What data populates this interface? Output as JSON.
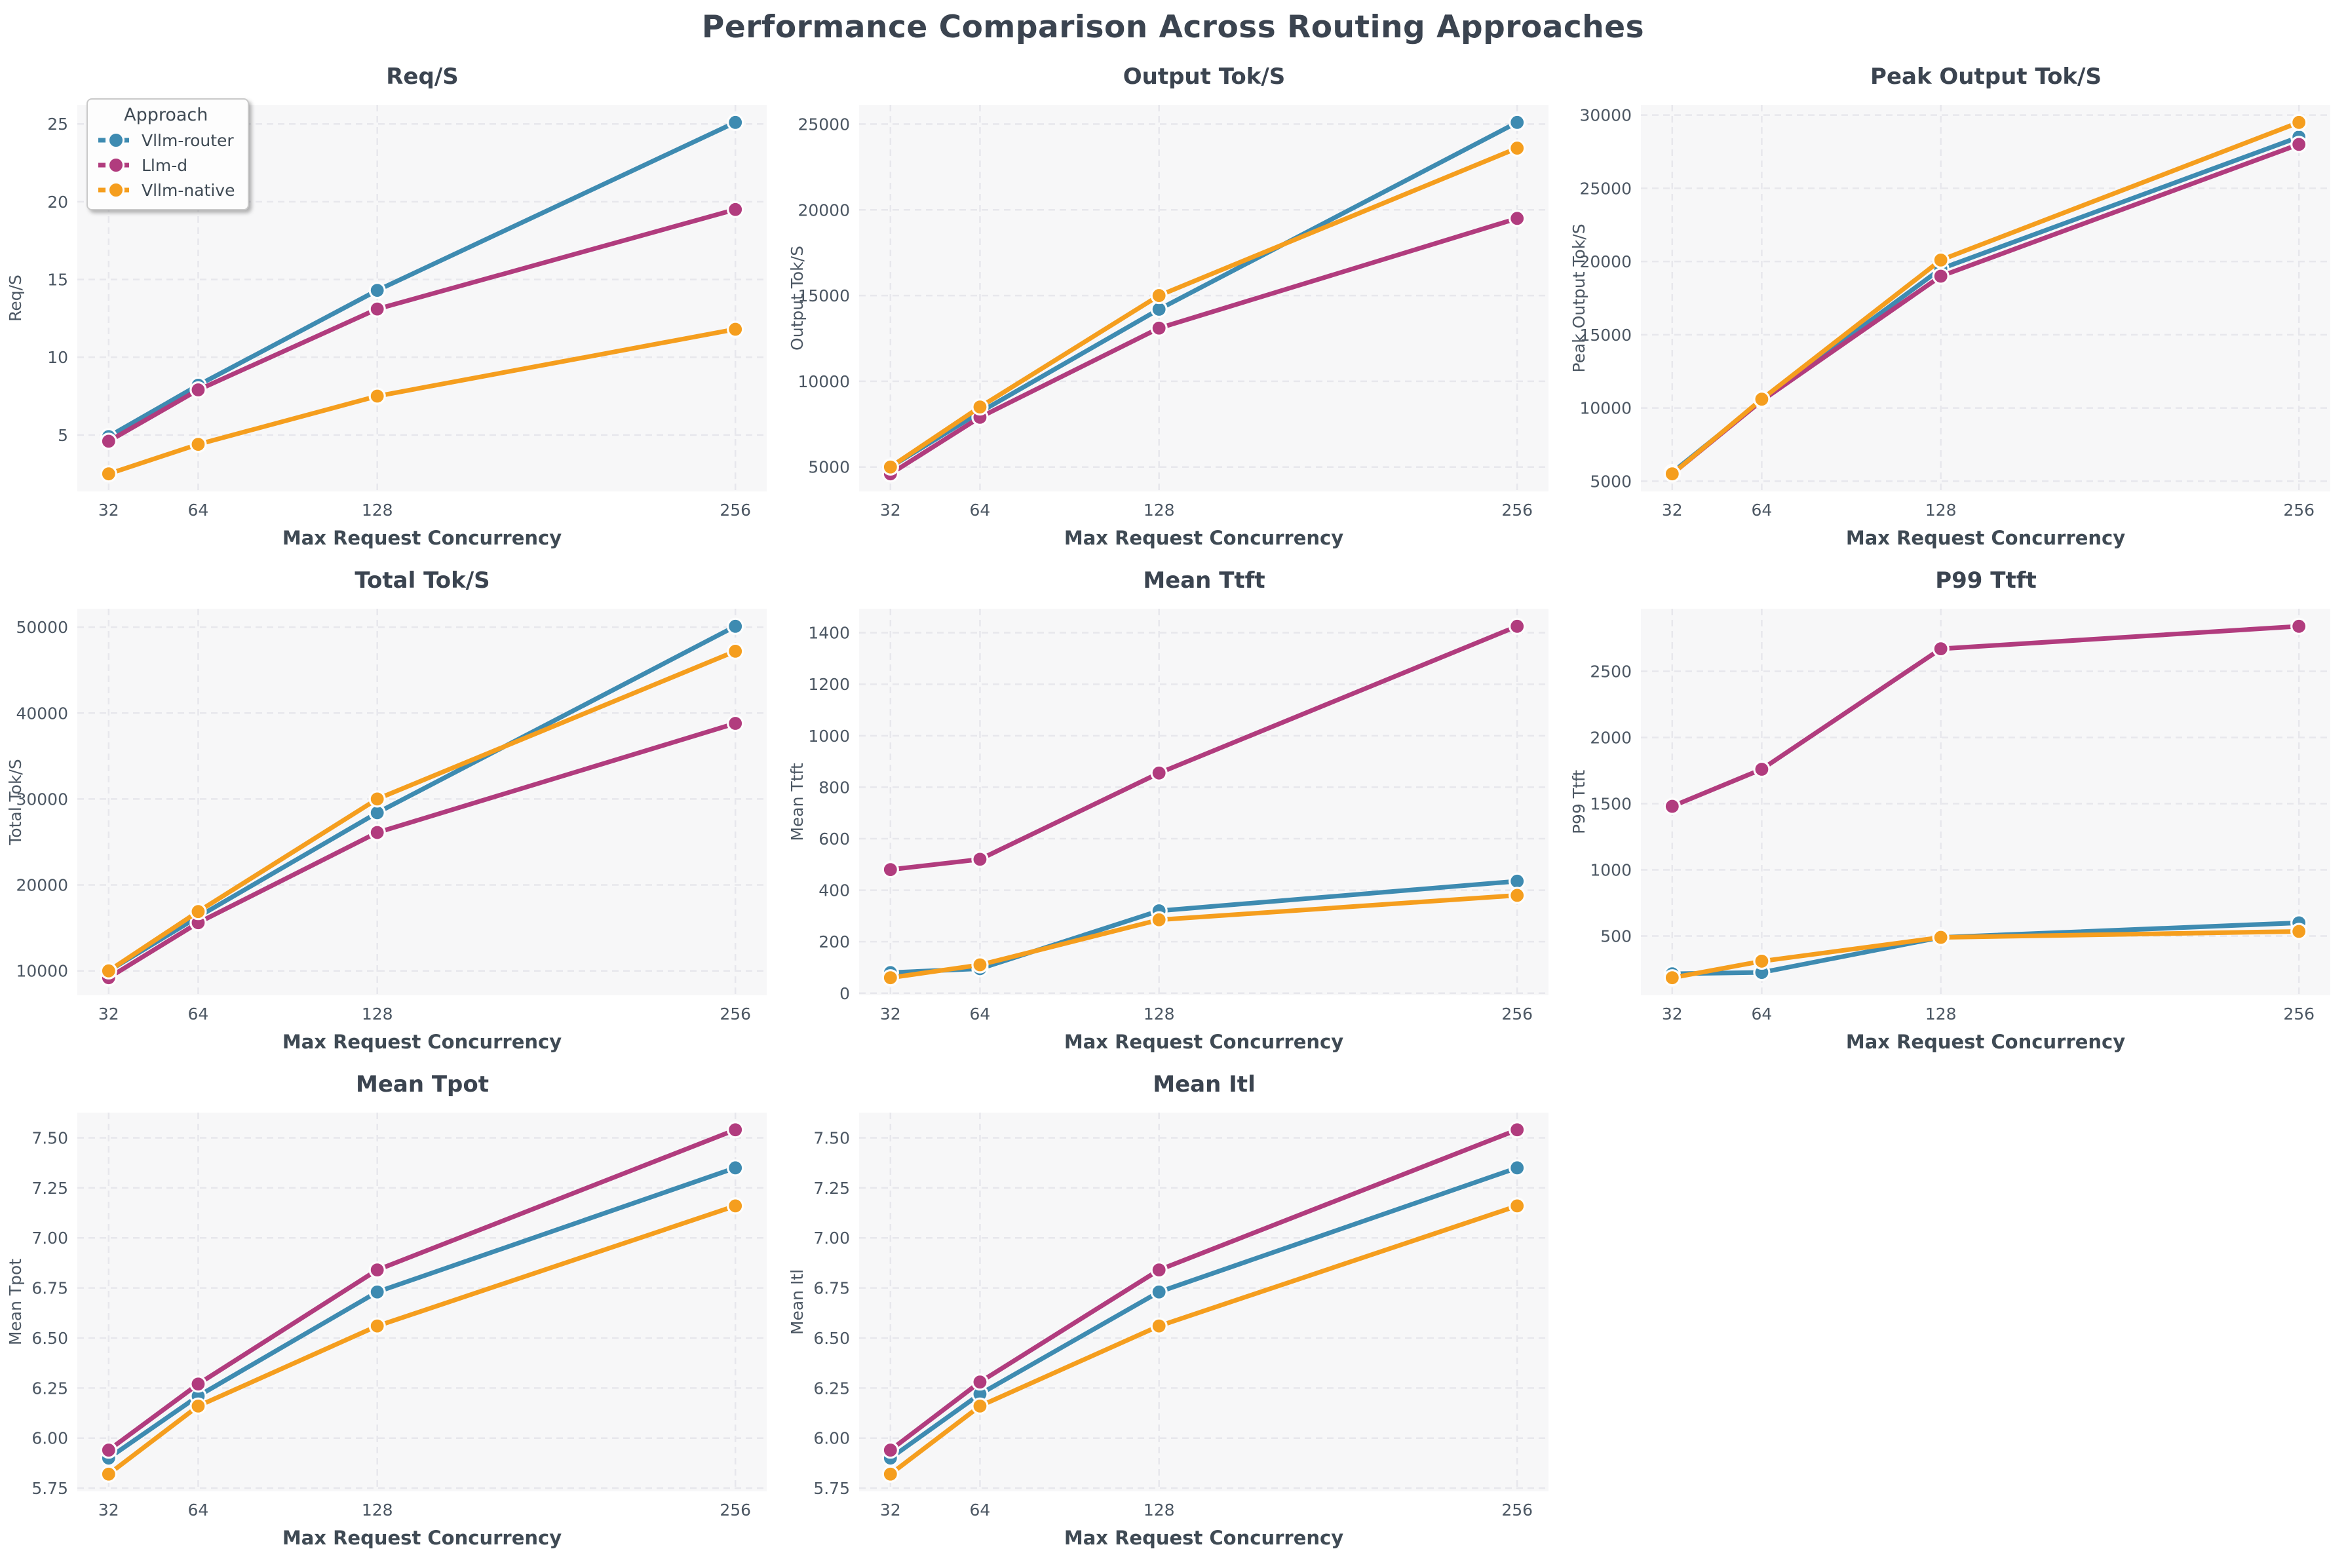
{
  "page_title": "Performance Comparison Across Routing Approaches",
  "legend": {
    "title": "Approach",
    "items": [
      "Vllm-router",
      "Llm-d",
      "Vllm-native"
    ]
  },
  "palette": {
    "vllm_router": "#3E8BB1",
    "llm_d": "#B13C7E",
    "vllm_native": "#F59E1E"
  },
  "chart_data": [
    {
      "type": "line",
      "title": "Req/S",
      "xlabel": "Max Request Concurrency",
      "ylabel": "Req/S",
      "x": [
        32,
        64,
        128,
        256
      ],
      "yticks": [
        5,
        10,
        15,
        20,
        25
      ],
      "ytick_labels": [
        "5",
        "10",
        "15",
        "20",
        "25"
      ],
      "series": [
        {
          "name": "Vllm-router",
          "color": "#3E8BB1",
          "values": [
            4.9,
            8.2,
            14.3,
            25.1
          ]
        },
        {
          "name": "Llm-d",
          "color": "#B13C7E",
          "values": [
            4.6,
            7.9,
            13.1,
            19.5
          ]
        },
        {
          "name": "Vllm-native",
          "color": "#F59E1E",
          "values": [
            2.5,
            4.4,
            7.5,
            11.8
          ]
        }
      ]
    },
    {
      "type": "line",
      "title": "Output Tok/S",
      "xlabel": "Max Request Concurrency",
      "ylabel": "Output Tok/S",
      "x": [
        32,
        64,
        128,
        256
      ],
      "yticks": [
        5000,
        10000,
        15000,
        20000,
        25000
      ],
      "ytick_labels": [
        "5000",
        "10000",
        "15000",
        "20000",
        "25000"
      ],
      "series": [
        {
          "name": "Vllm-router",
          "color": "#3E8BB1",
          "values": [
            5000,
            8200,
            14200,
            25100
          ]
        },
        {
          "name": "Llm-d",
          "color": "#B13C7E",
          "values": [
            4600,
            7900,
            13100,
            19500
          ]
        },
        {
          "name": "Vllm-native",
          "color": "#F59E1E",
          "values": [
            5000,
            8500,
            15000,
            23600
          ]
        }
      ]
    },
    {
      "type": "line",
      "title": "Peak Output Tok/S",
      "xlabel": "Max Request Concurrency",
      "ylabel": "Peak Output Tok/S",
      "x": [
        32,
        64,
        128,
        256
      ],
      "yticks": [
        5000,
        10000,
        15000,
        20000,
        25000,
        30000
      ],
      "ytick_labels": [
        "5000",
        "10000",
        "15000",
        "20000",
        "25000",
        "30000"
      ],
      "series": [
        {
          "name": "Vllm-router",
          "color": "#3E8BB1",
          "values": [
            5600,
            10500,
            19500,
            28500
          ]
        },
        {
          "name": "Llm-d",
          "color": "#B13C7E",
          "values": [
            5500,
            10500,
            19000,
            28000
          ]
        },
        {
          "name": "Vllm-native",
          "color": "#F59E1E",
          "values": [
            5500,
            10600,
            20100,
            29500
          ]
        }
      ]
    },
    {
      "type": "line",
      "title": "Total Tok/S",
      "xlabel": "Max Request Concurrency",
      "ylabel": "Total Tok/S",
      "x": [
        32,
        64,
        128,
        256
      ],
      "yticks": [
        10000,
        20000,
        30000,
        40000,
        50000
      ],
      "ytick_labels": [
        "10000",
        "20000",
        "30000",
        "40000",
        "50000"
      ],
      "series": [
        {
          "name": "Vllm-router",
          "color": "#3E8BB1",
          "values": [
            10000,
            16300,
            28400,
            50100
          ]
        },
        {
          "name": "Llm-d",
          "color": "#B13C7E",
          "values": [
            9200,
            15600,
            26100,
            38800
          ]
        },
        {
          "name": "Vllm-native",
          "color": "#F59E1E",
          "values": [
            10000,
            16900,
            30000,
            47200
          ]
        }
      ]
    },
    {
      "type": "line",
      "title": "Mean Ttft",
      "xlabel": "Max Request Concurrency",
      "ylabel": "Mean Ttft",
      "x": [
        32,
        64,
        128,
        256
      ],
      "yticks": [
        0,
        200,
        400,
        600,
        800,
        1000,
        1200,
        1400
      ],
      "ytick_labels": [
        "0",
        "200",
        "400",
        "600",
        "800",
        "1000",
        "1200",
        "1400"
      ],
      "series": [
        {
          "name": "Vllm-router",
          "color": "#3E8BB1",
          "values": [
            80,
            95,
            320,
            435
          ]
        },
        {
          "name": "Llm-d",
          "color": "#B13C7E",
          "values": [
            480,
            520,
            855,
            1425
          ]
        },
        {
          "name": "Vllm-native",
          "color": "#F59E1E",
          "values": [
            60,
            110,
            285,
            380
          ]
        }
      ]
    },
    {
      "type": "line",
      "title": "P99 Ttft",
      "xlabel": "Max Request Concurrency",
      "ylabel": "P99 Ttft",
      "x": [
        32,
        64,
        128,
        256
      ],
      "yticks": [
        500,
        1000,
        1500,
        2000,
        2500
      ],
      "ytick_labels": [
        "500",
        "1000",
        "1500",
        "2000",
        "2500"
      ],
      "series": [
        {
          "name": "Vllm-router",
          "color": "#3E8BB1",
          "values": [
            215,
            225,
            490,
            600
          ]
        },
        {
          "name": "Llm-d",
          "color": "#B13C7E",
          "values": [
            1480,
            1760,
            2670,
            2840
          ]
        },
        {
          "name": "Vllm-native",
          "color": "#F59E1E",
          "values": [
            185,
            310,
            490,
            535
          ]
        }
      ]
    },
    {
      "type": "line",
      "title": "Mean Tpot",
      "xlabel": "Max Request Concurrency",
      "ylabel": "Mean Tpot",
      "x": [
        32,
        64,
        128,
        256
      ],
      "yticks": [
        5.75,
        6.0,
        6.25,
        6.5,
        6.75,
        7.0,
        7.25,
        7.5
      ],
      "ytick_labels": [
        "5.75",
        "6.00",
        "6.25",
        "6.50",
        "6.75",
        "7.00",
        "7.25",
        "7.50"
      ],
      "series": [
        {
          "name": "Vllm-router",
          "color": "#3E8BB1",
          "values": [
            5.9,
            6.21,
            6.73,
            7.35
          ]
        },
        {
          "name": "Llm-d",
          "color": "#B13C7E",
          "values": [
            5.94,
            6.27,
            6.84,
            7.54
          ]
        },
        {
          "name": "Vllm-native",
          "color": "#F59E1E",
          "values": [
            5.82,
            6.16,
            6.56,
            7.16
          ]
        }
      ]
    },
    {
      "type": "line",
      "title": "Mean Itl",
      "xlabel": "Max Request Concurrency",
      "ylabel": "Mean Itl",
      "x": [
        32,
        64,
        128,
        256
      ],
      "yticks": [
        5.75,
        6.0,
        6.25,
        6.5,
        6.75,
        7.0,
        7.25,
        7.5
      ],
      "ytick_labels": [
        "5.75",
        "6.00",
        "6.25",
        "6.50",
        "6.75",
        "7.00",
        "7.25",
        "7.50"
      ],
      "series": [
        {
          "name": "Vllm-router",
          "color": "#3E8BB1",
          "values": [
            5.9,
            6.22,
            6.73,
            7.35
          ]
        },
        {
          "name": "Llm-d",
          "color": "#B13C7E",
          "values": [
            5.94,
            6.28,
            6.84,
            7.54
          ]
        },
        {
          "name": "Vllm-native",
          "color": "#F59E1E",
          "values": [
            5.82,
            6.16,
            6.56,
            7.16
          ]
        }
      ]
    }
  ]
}
